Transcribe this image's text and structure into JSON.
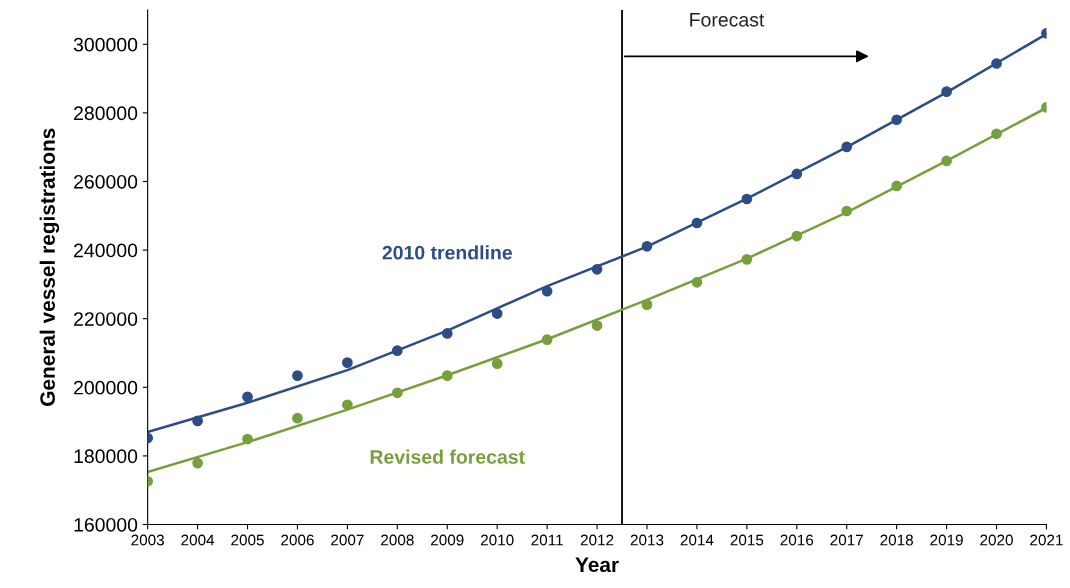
{
  "chart_data": {
    "type": "scatter",
    "xlabel": "Year",
    "ylabel": "General vessel registrations",
    "xlim": [
      2003,
      2021
    ],
    "xticks": [
      2003,
      2004,
      2005,
      2006,
      2007,
      2008,
      2009,
      2010,
      2011,
      2012,
      2013,
      2014,
      2015,
      2016,
      2017,
      2018,
      2019,
      2020,
      2021
    ],
    "ylim": [
      160000,
      310000
    ],
    "yticks": [
      160000,
      180000,
      200000,
      220000,
      240000,
      260000,
      280000,
      300000
    ],
    "grid": false,
    "legend": false,
    "series": [
      {
        "marker": "circle",
        "color": "#2e4d87",
        "x": [
          2003,
          2004,
          2005,
          2006,
          2007,
          2008,
          2009,
          2010,
          2011,
          2012,
          2013,
          2014,
          2015,
          2016,
          2017,
          2018,
          2019,
          2020,
          2021
        ],
        "values": [
          185200,
          190200,
          197200,
          203400,
          207200,
          210700,
          215700,
          221500,
          228000,
          234400,
          241100,
          247900,
          254900,
          262200,
          270100,
          278000,
          286200,
          294400,
          303200
        ]
      },
      {
        "marker": "circle",
        "color": "#77a03c",
        "x": [
          2003,
          2004,
          2005,
          2006,
          2007,
          2008,
          2009,
          2010,
          2011,
          2012,
          2013,
          2014,
          2015,
          2016,
          2017,
          2018,
          2019,
          2020,
          2021
        ],
        "values": [
          172600,
          177900,
          184900,
          191000,
          194900,
          198400,
          203400,
          206900,
          213900,
          218000,
          224100,
          230600,
          237300,
          244100,
          251400,
          258700,
          266000,
          273900,
          281600
        ]
      },
      {
        "type": "line",
        "marker": "none",
        "name": "2010 trendline",
        "color": "#2e4d87",
        "x": [
          2003,
          2005,
          2007,
          2009,
          2011,
          2013,
          2015,
          2017,
          2019,
          2021
        ],
        "values": [
          187000,
          195500,
          205000,
          216500,
          229500,
          241000,
          255000,
          270000,
          286000,
          303000
        ]
      },
      {
        "type": "line",
        "marker": "none",
        "name": "Revised forecast",
        "color": "#77a03c",
        "x": [
          2003,
          2005,
          2007,
          2009,
          2011,
          2013,
          2015,
          2017,
          2019,
          2021
        ],
        "values": [
          175300,
          184000,
          193500,
          203500,
          214000,
          225500,
          237500,
          251000,
          266000,
          281500
        ]
      }
    ],
    "ref_lines": [
      {
        "axis": "x",
        "value": 2012.5,
        "color": "#000000"
      }
    ],
    "annotations": [
      "Forecast"
    ]
  }
}
